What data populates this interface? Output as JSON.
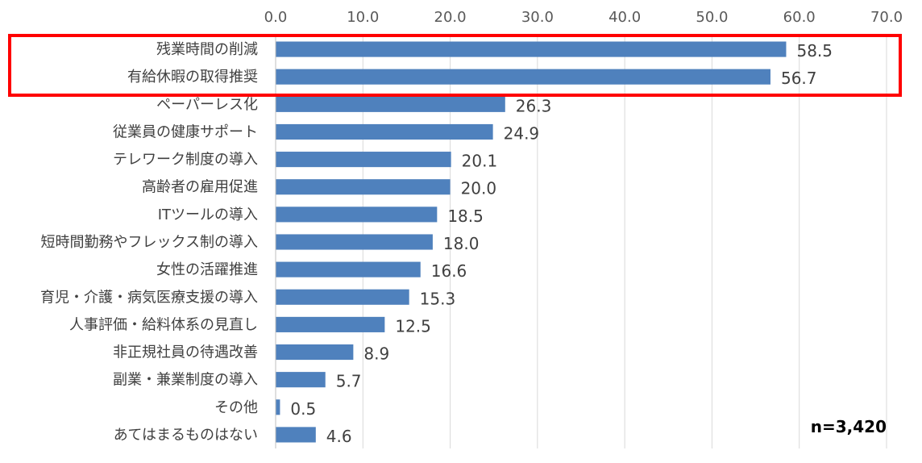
{
  "chart_data": {
    "type": "bar",
    "orientation": "horizontal",
    "categories": [
      "残業時間の削減",
      "有給休暇の取得推奨",
      "ペーパーレス化",
      "従業員の健康サポート",
      "テレワーク制度の導入",
      "高齢者の雇用促進",
      "ITツールの導入",
      "短時間勤務やフレックス制の導入",
      "女性の活躍推進",
      "育児・介護・病気医療支援の導入",
      "人事評価・給料体系の見直し",
      "非正規社員の待遇改善",
      "副業・兼業制度の導入",
      "その他",
      "あてはまるものはない"
    ],
    "values": [
      58.5,
      56.7,
      26.3,
      24.9,
      20.1,
      20.0,
      18.5,
      18.0,
      16.6,
      15.3,
      12.5,
      8.9,
      5.7,
      0.5,
      4.6
    ],
    "data_labels": [
      "58.5",
      "56.7",
      "26.3",
      "24.9",
      "20.1",
      "20.0",
      "18.5",
      "18.0",
      "16.6",
      "15.3",
      "12.5",
      "8.9",
      "5.7",
      "0.5",
      "4.6"
    ],
    "xlim": [
      0,
      70
    ],
    "x_ticks": [
      "0.0",
      "10.0",
      "20.0",
      "30.0",
      "40.0",
      "50.0",
      "60.0",
      "70.0"
    ],
    "x_axis_position": "top",
    "grid": true,
    "title": "",
    "xlabel": "",
    "ylabel": "",
    "bar_color": "#4F81BD",
    "highlight": {
      "categories": [
        "残業時間の削減",
        "有給休暇の取得推奨"
      ],
      "color": "#FF0000"
    },
    "annotation": "n=3,420"
  }
}
